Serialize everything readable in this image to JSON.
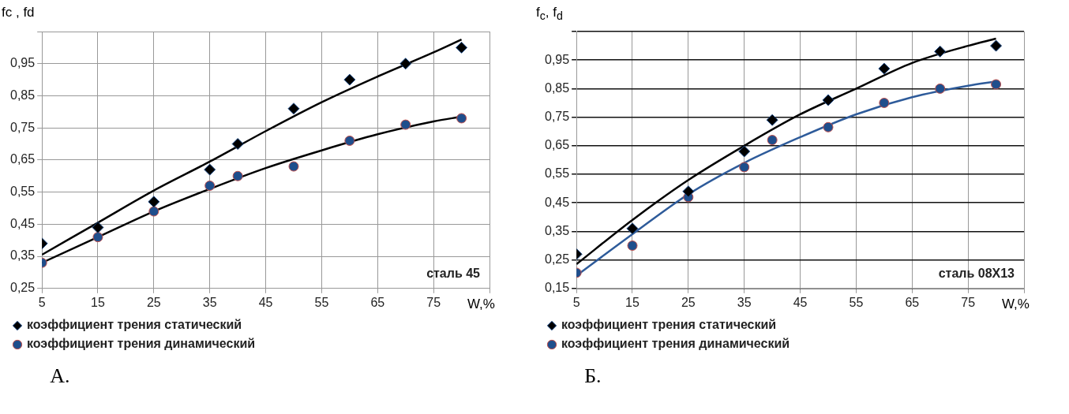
{
  "chart_data": [
    {
      "type": "scatter",
      "title": "А.",
      "xlabel": "W,%",
      "ylabel": "fc , fd",
      "annotations": [
        "сталь 45"
      ],
      "xlim": [
        5,
        85
      ],
      "xticks": [
        5,
        15,
        25,
        35,
        45,
        55,
        65,
        75,
        {
          "value": 85,
          "label": null
        }
      ],
      "ylim": [
        0.25,
        1.05
      ],
      "yticks": [
        {
          "value": 0.25,
          "label": "0,25"
        },
        {
          "value": 0.35,
          "label": "0,35"
        },
        {
          "value": 0.45,
          "label": "0,45"
        },
        {
          "value": 0.55,
          "label": "0,55"
        },
        {
          "value": 0.65,
          "label": "0,65"
        },
        {
          "value": 0.75,
          "label": "0,75"
        },
        {
          "value": 0.85,
          "label": "0,85"
        },
        {
          "value": 0.95,
          "label": "0,95"
        },
        {
          "value": 1.05,
          "label": null
        }
      ],
      "grid": true,
      "legend": "bottom",
      "series": [
        {
          "type": "line",
          "marker": "none",
          "color": "#000000",
          "x": [
            5,
            15,
            25,
            35,
            45,
            55,
            65,
            75,
            80
          ],
          "values": [
            0.355,
            0.455,
            0.555,
            0.645,
            0.74,
            0.83,
            0.91,
            0.985,
            1.025
          ]
        },
        {
          "type": "line",
          "marker": "none",
          "color": "#000000",
          "x": [
            5,
            15,
            25,
            35,
            45,
            55,
            65,
            75,
            80
          ],
          "values": [
            0.33,
            0.41,
            0.49,
            0.56,
            0.625,
            0.68,
            0.73,
            0.77,
            0.785
          ]
        },
        {
          "type": "scatter",
          "name": "коэффициент трения статический",
          "marker": "diamond",
          "color": "#000000",
          "x": [
            5,
            15,
            25,
            35,
            40,
            50,
            60,
            70,
            80
          ],
          "values": [
            0.39,
            0.44,
            0.52,
            0.62,
            0.7,
            0.81,
            0.9,
            0.95,
            1.0
          ]
        },
        {
          "type": "scatter",
          "name": "коэффициент трения динамический",
          "marker": "circle",
          "color": "#1f4e8c",
          "x": [
            5,
            15,
            25,
            35,
            40,
            50,
            60,
            70,
            80
          ],
          "values": [
            0.33,
            0.41,
            0.49,
            0.57,
            0.6,
            0.63,
            0.71,
            0.76,
            0.78
          ]
        }
      ]
    },
    {
      "type": "scatter",
      "title": "Б.",
      "xlabel": "W,%",
      "ylabel": "f$_{c}$, f$_{d}$",
      "annotations": [
        "сталь 08Х13"
      ],
      "xlim": [
        5,
        85
      ],
      "xticks": [
        5,
        15,
        25,
        35,
        45,
        55,
        65,
        75,
        {
          "value": 85,
          "label": null
        }
      ],
      "ylim": [
        0.15,
        1.05
      ],
      "yticks": [
        {
          "value": 0.15,
          "label": "0,15"
        },
        {
          "value": 0.25,
          "label": "0,25"
        },
        {
          "value": 0.35,
          "label": "0,35"
        },
        {
          "value": 0.45,
          "label": "0,45"
        },
        {
          "value": 0.55,
          "label": "0,55"
        },
        {
          "value": 0.65,
          "label": "0,65"
        },
        {
          "value": 0.75,
          "label": "0,75"
        },
        {
          "value": 0.85,
          "label": "0,85"
        },
        {
          "value": 0.95,
          "label": "0,95"
        },
        {
          "value": 1.05,
          "label": null
        }
      ],
      "grid": true,
      "legend": "bottom",
      "series": [
        {
          "type": "line",
          "marker": "none",
          "color": "#000000",
          "x": [
            5,
            15,
            25,
            35,
            45,
            55,
            65,
            75,
            80
          ],
          "values": [
            0.235,
            0.39,
            0.53,
            0.65,
            0.76,
            0.85,
            0.94,
            1.0,
            1.025
          ]
        },
        {
          "type": "line",
          "marker": "none",
          "color": "#2e5b9a",
          "x": [
            5,
            15,
            25,
            35,
            45,
            55,
            65,
            75,
            80
          ],
          "values": [
            0.195,
            0.34,
            0.48,
            0.59,
            0.68,
            0.76,
            0.82,
            0.86,
            0.875
          ]
        },
        {
          "type": "scatter",
          "name": "коэффициент трения статический",
          "marker": "diamond",
          "color": "#000000",
          "x": [
            5,
            15,
            25,
            35,
            40,
            50,
            60,
            70,
            80
          ],
          "values": [
            0.27,
            0.36,
            0.49,
            0.63,
            0.74,
            0.81,
            0.92,
            0.98,
            1.0
          ]
        },
        {
          "type": "scatter",
          "name": "коэффициент трения динамический",
          "marker": "circle",
          "color": "#1f4e8c",
          "x": [
            5,
            15,
            25,
            35,
            40,
            50,
            60,
            70,
            80
          ],
          "values": [
            0.205,
            0.3,
            0.47,
            0.575,
            0.67,
            0.715,
            0.8,
            0.85,
            0.865
          ]
        }
      ]
    }
  ]
}
